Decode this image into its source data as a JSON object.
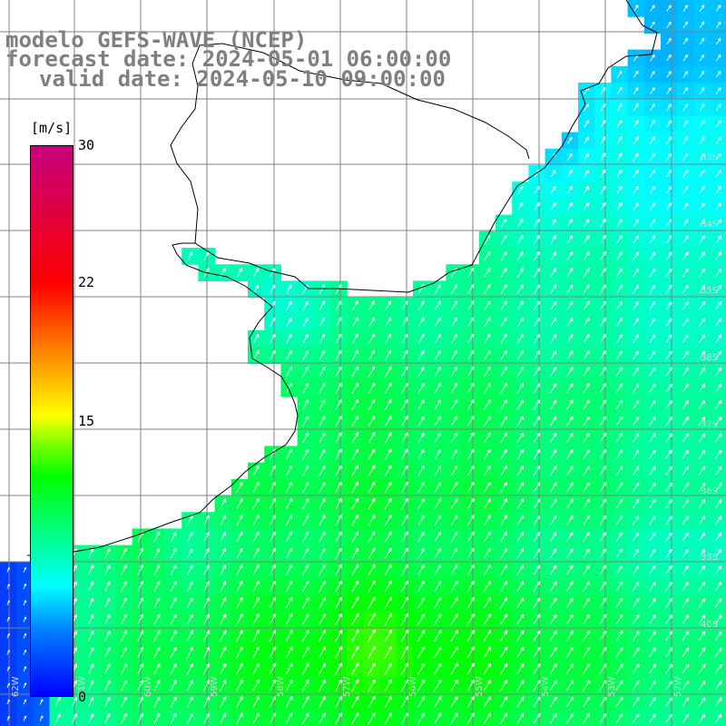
{
  "title": {
    "model": "modelo GEFS-WAVE (NCEP)",
    "forecast": "forecast date: 2024-05-01 06:00:00",
    "valid": "valid date: 2024-05-10 09:00:00"
  },
  "colorbar": {
    "unit": "[m/s]",
    "ticks": [
      "30",
      "22",
      "15",
      "0"
    ],
    "range": [
      0,
      30
    ],
    "colors": [
      "#0000ff",
      "#0080ff",
      "#00ffff",
      "#00ff80",
      "#00ff00",
      "#80ff00",
      "#ffff00",
      "#ff8000",
      "#ff0000",
      "#c80080"
    ]
  },
  "map": {
    "region": "Rio de la Plata / Uruguay coast",
    "land_color": "#ffffff",
    "coast_color": "#000000",
    "grid_color": "#808080",
    "lat_labels": [
      "33S",
      "34S",
      "35S",
      "36S",
      "37S",
      "38S",
      "39S",
      "40S"
    ],
    "lon_labels": [
      "62W",
      "61W",
      "60W",
      "59W",
      "58W",
      "57W",
      "56W",
      "55W",
      "54W",
      "53W",
      "52W"
    ],
    "wind_direction": "from SW toward NE"
  }
}
